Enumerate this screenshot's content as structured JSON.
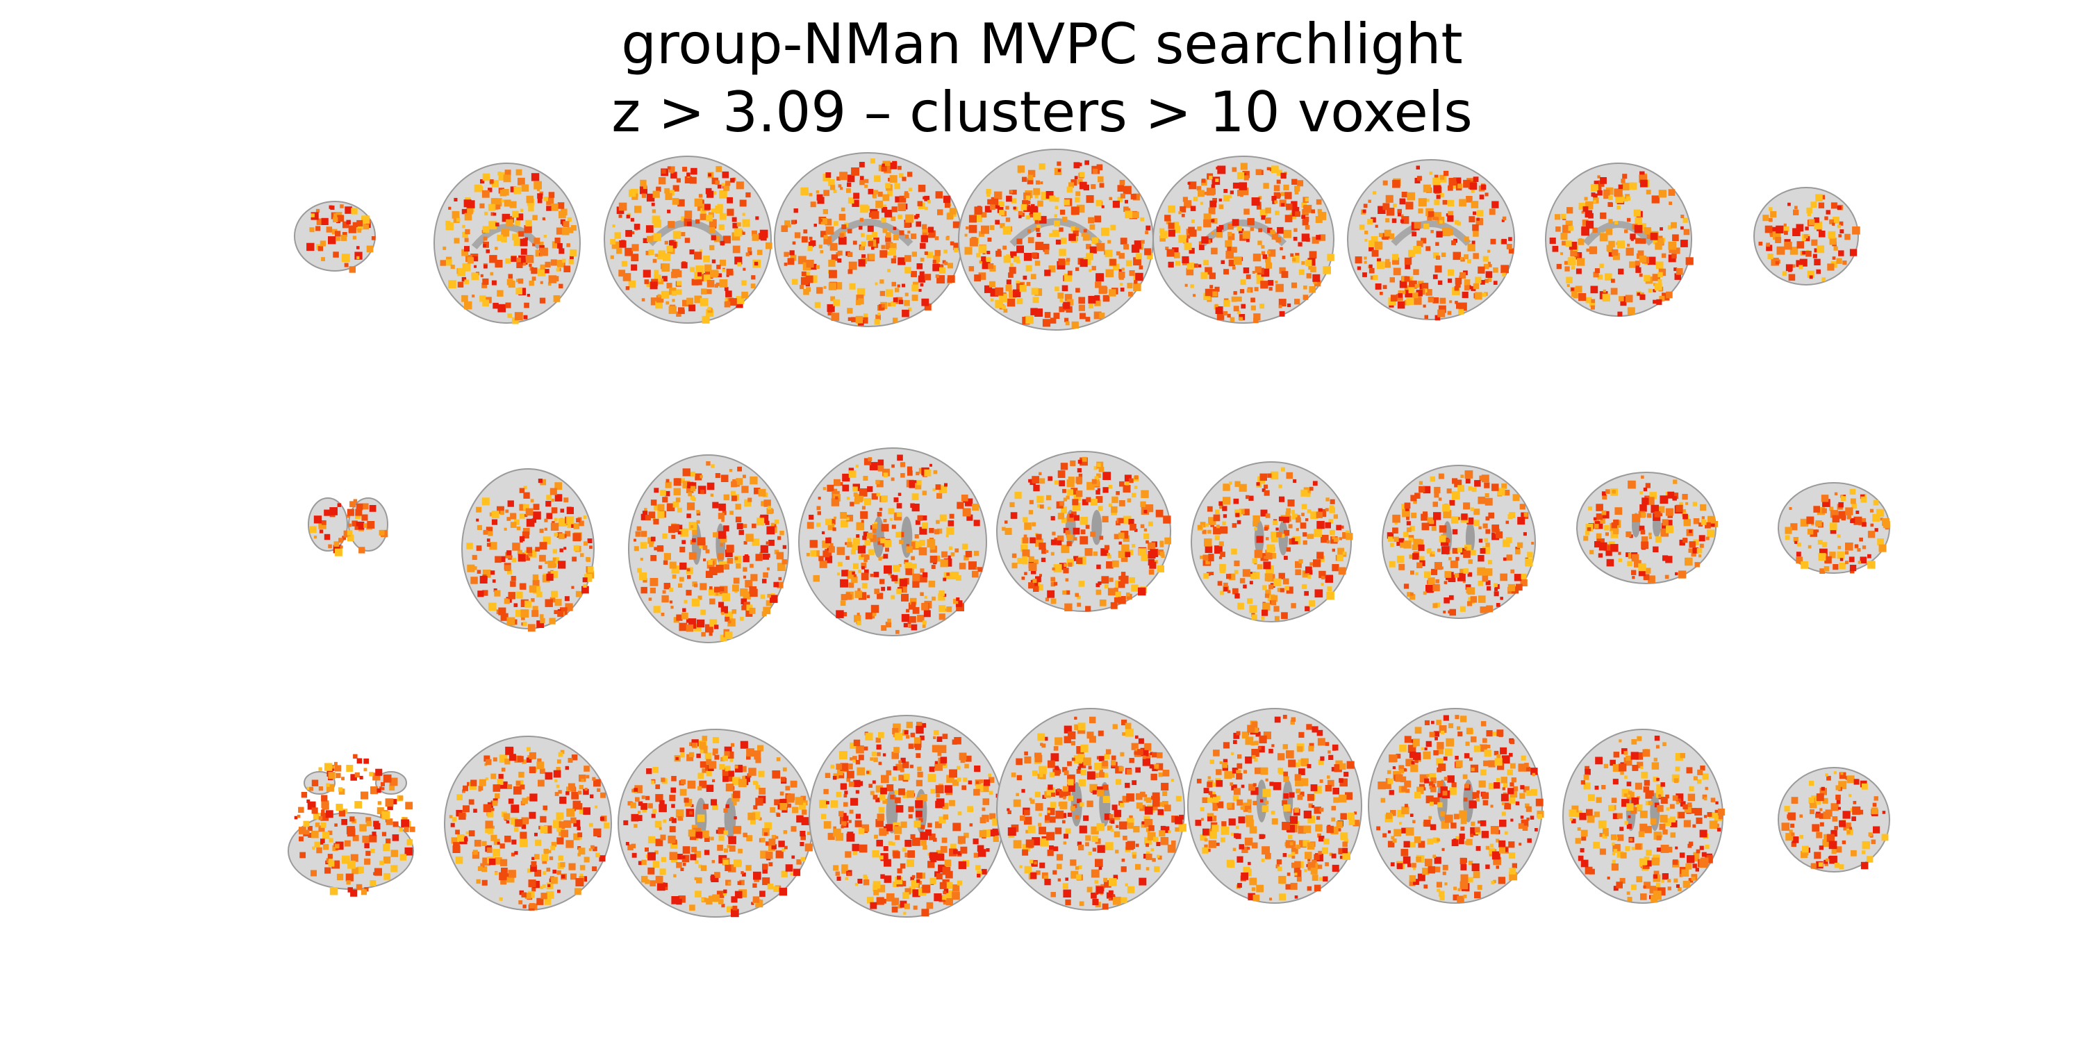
{
  "figure": {
    "title_line1": "group-NMan MVPC searchlight",
    "title_line2": "z > 3.09 – clusters > 10 voxels"
  },
  "overlay": {
    "colormap": [
      "#e81e0a",
      "#f04a0c",
      "#f6781a",
      "#fa9a1a",
      "#ffc020"
    ],
    "brain_tissue": "#d8d8d8",
    "brain_outline": "#9a9a9a",
    "background": "#ffffff"
  },
  "rows": [
    {
      "view": "sagittal",
      "slices": 9
    },
    {
      "view": "coronal",
      "slices": 9
    },
    {
      "view": "axial",
      "slices": 9
    }
  ]
}
